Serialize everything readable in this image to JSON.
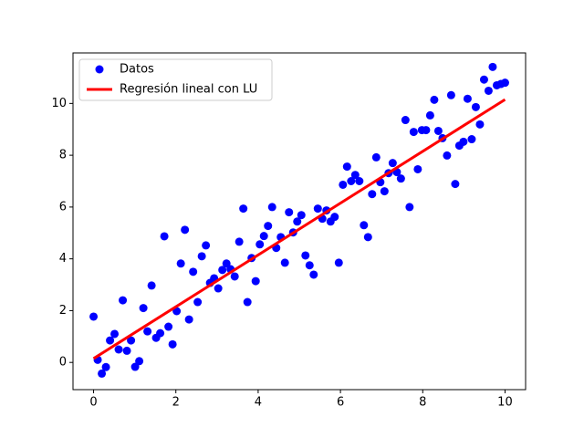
{
  "chart_data": {
    "type": "scatter",
    "series": [
      {
        "name": "Datos",
        "type": "scatter",
        "color": "#0000ff",
        "x": [
          0,
          0.1,
          0.2,
          0.3,
          0.4,
          0.51,
          0.61,
          0.71,
          0.81,
          0.91,
          1.01,
          1.11,
          1.21,
          1.31,
          1.41,
          1.52,
          1.62,
          1.72,
          1.82,
          1.92,
          2.02,
          2.12,
          2.22,
          2.32,
          2.42,
          2.53,
          2.63,
          2.73,
          2.83,
          2.93,
          3.03,
          3.13,
          3.23,
          3.33,
          3.43,
          3.54,
          3.64,
          3.74,
          3.84,
          3.94,
          4.04,
          4.14,
          4.24,
          4.34,
          4.44,
          4.55,
          4.65,
          4.75,
          4.85,
          4.95,
          5.05,
          5.15,
          5.25,
          5.35,
          5.45,
          5.56,
          5.66,
          5.76,
          5.86,
          5.96,
          6.06,
          6.16,
          6.26,
          6.36,
          6.46,
          6.57,
          6.67,
          6.77,
          6.87,
          6.97,
          7.07,
          7.17,
          7.27,
          7.37,
          7.47,
          7.58,
          7.68,
          7.78,
          7.88,
          7.98,
          8.08,
          8.18,
          8.28,
          8.38,
          8.48,
          8.59,
          8.69,
          8.79,
          8.89,
          8.99,
          9.09,
          9.19,
          9.29,
          9.39,
          9.49,
          9.6,
          9.7,
          9.8,
          9.9,
          10
        ],
        "values": [
          1.77,
          0.1,
          -0.43,
          -0.18,
          0.85,
          1.1,
          0.5,
          2.4,
          0.45,
          0.85,
          -0.17,
          0.05,
          2.1,
          1.2,
          2.97,
          0.95,
          1.13,
          4.87,
          1.38,
          0.7,
          1.98,
          3.82,
          5.12,
          1.66,
          3.5,
          2.33,
          4.1,
          4.52,
          3.07,
          3.25,
          2.86,
          3.57,
          3.82,
          3.6,
          3.32,
          4.66,
          5.94,
          2.33,
          4.03,
          3.14,
          4.56,
          4.88,
          5.27,
          6.0,
          4.42,
          4.84,
          3.85,
          5.8,
          5.02,
          5.44,
          5.69,
          4.13,
          3.75,
          3.39,
          5.94,
          5.55,
          5.87,
          5.44,
          5.62,
          3.85,
          6.86,
          7.56,
          7.0,
          7.24,
          7.0,
          5.3,
          4.84,
          6.5,
          7.92,
          6.96,
          6.61,
          7.31,
          7.7,
          7.35,
          7.1,
          9.36,
          6.0,
          8.9,
          7.46,
          8.97,
          8.97,
          9.54,
          10.14,
          8.94,
          8.66,
          7.99,
          10.32,
          6.89,
          8.37,
          8.52,
          10.18,
          8.62,
          9.86,
          9.19,
          10.92,
          10.49,
          11.41,
          10.7,
          10.75,
          10.8
        ]
      },
      {
        "name": "Regresión lineal con LU",
        "type": "line",
        "color": "#ff0000",
        "x": [
          0,
          10
        ],
        "values": [
          0.15,
          10.15
        ]
      }
    ],
    "xlim": [
      -0.5,
      10.5
    ],
    "ylim": [
      -1.05,
      11.95
    ],
    "xticks": [
      0,
      2,
      4,
      6,
      8,
      10
    ],
    "yticks": [
      0,
      2,
      4,
      6,
      8,
      10
    ],
    "legend": "upper left"
  }
}
